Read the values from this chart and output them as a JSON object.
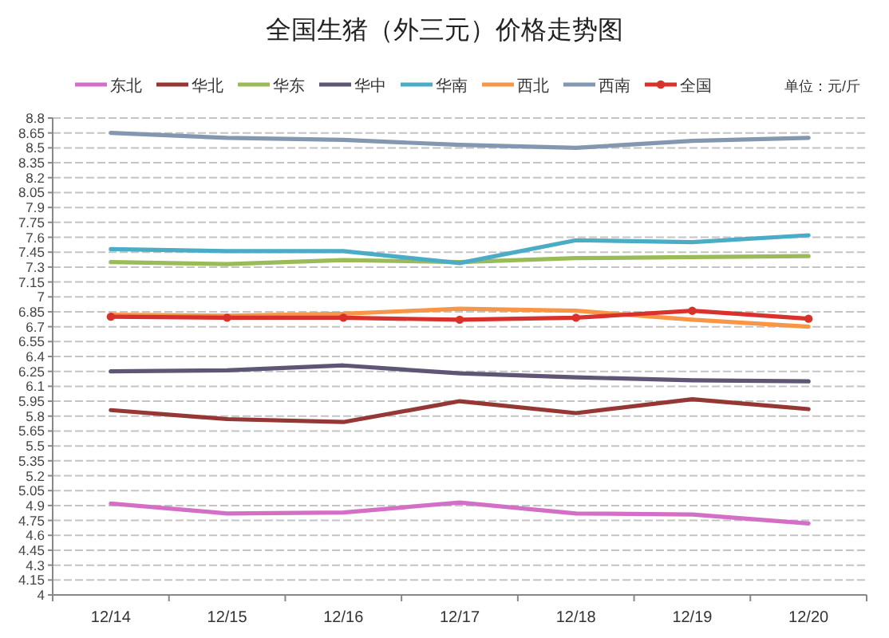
{
  "chart_data": {
    "type": "line",
    "title": "全国生猪（外三元）价格走势图",
    "annotations": [
      "单位：元/斤"
    ],
    "categories": [
      "12/14",
      "12/15",
      "12/16",
      "12/17",
      "12/18",
      "12/19",
      "12/20"
    ],
    "ylim": [
      4,
      8.8
    ],
    "yticks": [
      4,
      4.15,
      4.3,
      4.45,
      4.6,
      4.75,
      4.9,
      5.05,
      5.2,
      5.35,
      5.5,
      5.65,
      5.8,
      5.95,
      6.1,
      6.25,
      6.4,
      6.55,
      6.7,
      6.85,
      7,
      7.15,
      7.3,
      7.45,
      7.6,
      7.75,
      7.9,
      8.05,
      8.2,
      8.35,
      8.5,
      8.65,
      8.8
    ],
    "grid": "y",
    "legend": "top",
    "series": [
      {
        "name": "东北",
        "color": "#d46fc6",
        "values": [
          4.92,
          4.82,
          4.83,
          4.93,
          4.82,
          4.81,
          4.72
        ]
      },
      {
        "name": "华北",
        "color": "#953735",
        "values": [
          5.86,
          5.77,
          5.74,
          5.95,
          5.83,
          5.97,
          5.87
        ]
      },
      {
        "name": "华东",
        "color": "#9bbb59",
        "values": [
          7.35,
          7.33,
          7.37,
          7.35,
          7.39,
          7.4,
          7.41
        ]
      },
      {
        "name": "华中",
        "color": "#5f5574",
        "values": [
          6.25,
          6.26,
          6.31,
          6.23,
          6.19,
          6.16,
          6.15
        ]
      },
      {
        "name": "华南",
        "color": "#4bacc6",
        "values": [
          7.48,
          7.46,
          7.46,
          7.34,
          7.57,
          7.55,
          7.62
        ]
      },
      {
        "name": "西北",
        "color": "#f79646",
        "values": [
          6.82,
          6.81,
          6.83,
          6.88,
          6.86,
          6.77,
          6.7
        ]
      },
      {
        "name": "西南",
        "color": "#8497b0",
        "values": [
          8.65,
          8.6,
          8.58,
          8.53,
          8.5,
          8.57,
          8.6
        ]
      },
      {
        "name": "全国",
        "color": "#d9312b",
        "marker": "circle",
        "values": [
          6.8,
          6.79,
          6.79,
          6.77,
          6.79,
          6.86,
          6.78
        ]
      }
    ]
  }
}
